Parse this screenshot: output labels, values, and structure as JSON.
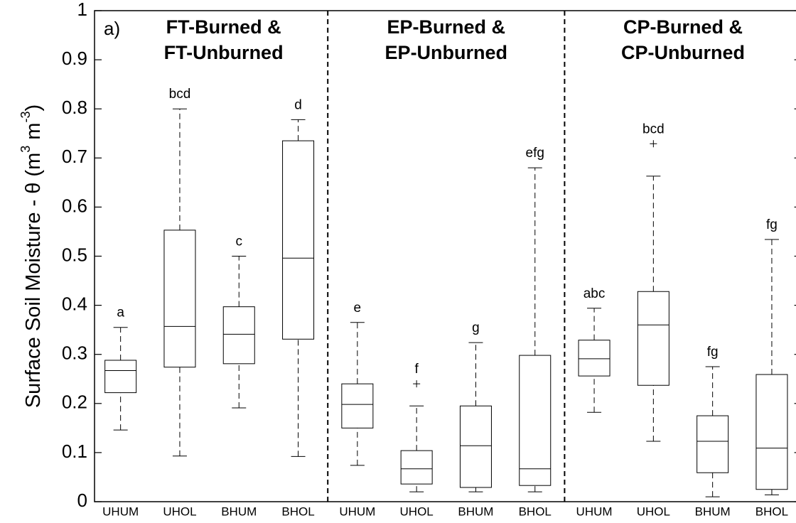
{
  "chart_data": {
    "type": "box",
    "annotation": "a)",
    "ylabel_parts": [
      {
        "text": "Surface Soil Moisture - θ (m"
      },
      {
        "text": "3",
        "sup": true
      },
      {
        "text": " m"
      },
      {
        "text": "-3",
        "sup": true
      },
      {
        "text": ")"
      }
    ],
    "groups": [
      {
        "title": [
          "FT-Burned &",
          "FT-Unburned"
        ]
      },
      {
        "title": [
          "EP-Burned &",
          "EP-Unburned"
        ]
      },
      {
        "title": [
          "CP-Burned &",
          "CP-Unburned"
        ]
      }
    ],
    "categories": [
      "UHUM",
      "UHOL",
      "BHUM",
      "BHOL",
      "UHUM",
      "UHOL",
      "BHUM",
      "BHOL",
      "UHUM",
      "UHOL",
      "BHUM",
      "BHOL"
    ],
    "boxes": [
      {
        "whislo": 0.146,
        "q1": 0.222,
        "med": 0.267,
        "q3": 0.288,
        "whishi": 0.355,
        "fliers": []
      },
      {
        "whislo": 0.093,
        "q1": 0.274,
        "med": 0.357,
        "q3": 0.553,
        "whishi": 0.8,
        "fliers": []
      },
      {
        "whislo": 0.191,
        "q1": 0.281,
        "med": 0.341,
        "q3": 0.397,
        "whishi": 0.5,
        "fliers": []
      },
      {
        "whislo": 0.092,
        "q1": 0.331,
        "med": 0.496,
        "q3": 0.735,
        "whishi": 0.778,
        "fliers": []
      },
      {
        "whislo": 0.074,
        "q1": 0.15,
        "med": 0.198,
        "q3": 0.24,
        "whishi": 0.365,
        "fliers": []
      },
      {
        "whislo": 0.02,
        "q1": 0.036,
        "med": 0.067,
        "q3": 0.104,
        "whishi": 0.195,
        "fliers": [
          0.24
        ]
      },
      {
        "whislo": 0.02,
        "q1": 0.029,
        "med": 0.114,
        "q3": 0.195,
        "whishi": 0.324,
        "fliers": []
      },
      {
        "whislo": 0.02,
        "q1": 0.033,
        "med": 0.067,
        "q3": 0.298,
        "whishi": 0.68,
        "fliers": []
      },
      {
        "whislo": 0.182,
        "q1": 0.256,
        "med": 0.291,
        "q3": 0.329,
        "whishi": 0.394,
        "fliers": []
      },
      {
        "whislo": 0.123,
        "q1": 0.237,
        "med": 0.36,
        "q3": 0.428,
        "whishi": 0.663,
        "fliers": [
          0.729
        ]
      },
      {
        "whislo": 0.01,
        "q1": 0.059,
        "med": 0.123,
        "q3": 0.175,
        "whishi": 0.275,
        "fliers": []
      },
      {
        "whislo": 0.014,
        "q1": 0.025,
        "med": 0.109,
        "q3": 0.259,
        "whishi": 0.534,
        "fliers": []
      }
    ],
    "letters": [
      "a",
      "bcd",
      "c",
      "d",
      "e",
      "f",
      "g",
      "efg",
      "abc",
      "bcd",
      "fg",
      "fg"
    ],
    "ylim": [
      0,
      1
    ],
    "yticks": [
      0,
      0.1,
      0.2,
      0.3,
      0.4,
      0.5,
      0.6,
      0.7,
      0.8,
      0.9,
      1
    ],
    "color": "#000000"
  }
}
